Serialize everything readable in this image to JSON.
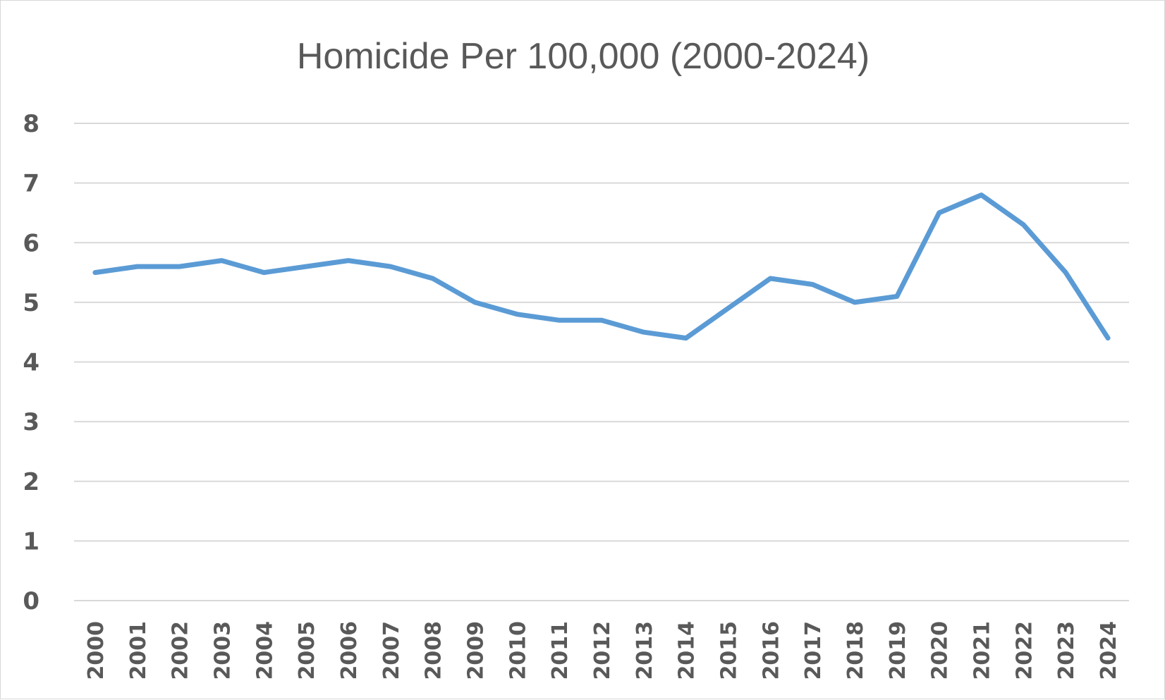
{
  "chart_data": {
    "type": "line",
    "title": "Homicide Per 100,000 (2000-2024)",
    "xlabel": "",
    "ylabel": "",
    "ylim": [
      0,
      8
    ],
    "yticks": [
      0,
      1,
      2,
      3,
      4,
      5,
      6,
      7,
      8
    ],
    "grid": true,
    "legend": "none",
    "categories": [
      "2000",
      "2001",
      "2002",
      "2003",
      "2004",
      "2005",
      "2006",
      "2007",
      "2008",
      "2009",
      "2010",
      "2011",
      "2012",
      "2013",
      "2014",
      "2015",
      "2016",
      "2017",
      "2018",
      "2019",
      "2020",
      "2021",
      "2022",
      "2023",
      "2024"
    ],
    "series": [
      {
        "color": "#5b9bd5",
        "values": [
          5.5,
          5.6,
          5.6,
          5.7,
          5.5,
          5.6,
          5.7,
          5.6,
          5.4,
          5.0,
          4.8,
          4.7,
          4.7,
          4.5,
          4.4,
          4.9,
          5.4,
          5.3,
          5.0,
          5.1,
          6.5,
          6.8,
          6.3,
          5.5,
          4.4
        ]
      }
    ]
  }
}
